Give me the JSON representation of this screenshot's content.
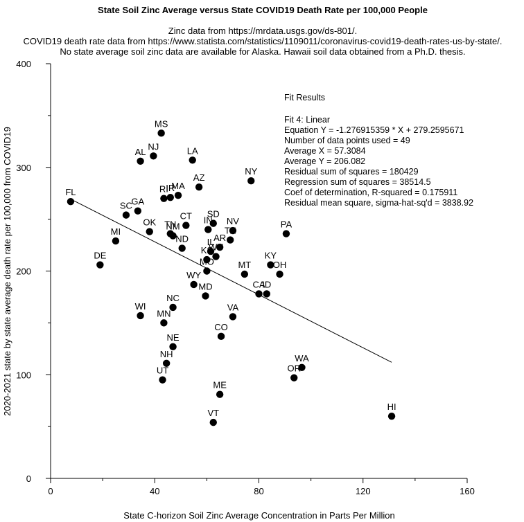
{
  "chart_data": {
    "type": "scatter",
    "title": "State Soil Zinc Average versus State COVID19 Death Rate per 100,000 People",
    "subtitle_lines": [
      "Zinc data from https://mrdata.usgs.gov/ds-801/.",
      "COVID19 death rate data from https://www.statista.com/statistics/1109011/coronavirus-covid19-death-rates-us-by-state/.",
      "No state average soil zinc data are available for Alaska.  Hawaii soil data obtained from a Ph.D. thesis."
    ],
    "xlabel": "State C-horizon Soil Zinc Average Concentration in Parts Per Million",
    "ylabel": "2020-2021 state by state average death rate per 100,000 from COVID19",
    "xlim": [
      0,
      160
    ],
    "ylim": [
      0,
      400
    ],
    "xticks": [
      0,
      40,
      80,
      120,
      160
    ],
    "yticks": [
      0,
      100,
      200,
      300,
      400
    ],
    "xtick_labels": [
      "0",
      "40",
      "80",
      "120",
      "160"
    ],
    "ytick_labels": [
      "0",
      "100",
      "200",
      "300",
      "400"
    ],
    "points": [
      {
        "label": "FL",
        "x": 7.7,
        "y": 267
      },
      {
        "label": "DE",
        "x": 19,
        "y": 206
      },
      {
        "label": "MI",
        "x": 25,
        "y": 229
      },
      {
        "label": "SC",
        "x": 29,
        "y": 254
      },
      {
        "label": "GA",
        "x": 33.5,
        "y": 258
      },
      {
        "label": "AL",
        "x": 34.5,
        "y": 306
      },
      {
        "label": "WI",
        "x": 34.5,
        "y": 157
      },
      {
        "label": "OK",
        "x": 38,
        "y": 238
      },
      {
        "label": "NJ",
        "x": 39.5,
        "y": 311
      },
      {
        "label": "MS",
        "x": 42.5,
        "y": 333
      },
      {
        "label": "RI",
        "x": 43.5,
        "y": 270
      },
      {
        "label": "MN",
        "x": 43.5,
        "y": 150
      },
      {
        "label": "UT",
        "x": 43,
        "y": 95
      },
      {
        "label": "NH",
        "x": 44.5,
        "y": 111
      },
      {
        "label": "IR",
        "x": 46,
        "y": 271
      },
      {
        "label": "TN",
        "x": 46,
        "y": 236
      },
      {
        "label": "NM",
        "x": 47,
        "y": 234
      },
      {
        "label": "NC",
        "x": 47,
        "y": 165
      },
      {
        "label": "NE",
        "x": 47,
        "y": 127
      },
      {
        "label": "MA",
        "x": 49,
        "y": 273
      },
      {
        "label": "ND",
        "x": 50.5,
        "y": 222
      },
      {
        "label": "CT",
        "x": 52,
        "y": 244
      },
      {
        "label": "LA",
        "x": 54.5,
        "y": 307
      },
      {
        "label": "WY",
        "x": 55,
        "y": 187
      },
      {
        "label": "AZ",
        "x": 57,
        "y": 281
      },
      {
        "label": "MD",
        "x": 59.5,
        "y": 176
      },
      {
        "label": "MO",
        "x": 60,
        "y": 200
      },
      {
        "label": "KS",
        "x": 60,
        "y": 211
      },
      {
        "label": "IN",
        "x": 60.5,
        "y": 240
      },
      {
        "label": "IL",
        "x": 61.5,
        "y": 219
      },
      {
        "label": "SD",
        "x": 62.5,
        "y": 246
      },
      {
        "label": "VT",
        "x": 62.5,
        "y": 54
      },
      {
        "label": "WV",
        "x": 63.5,
        "y": 214
      },
      {
        "label": "AR",
        "x": 65,
        "y": 223
      },
      {
        "label": "ME",
        "x": 65,
        "y": 81
      },
      {
        "label": "CO",
        "x": 65.5,
        "y": 137
      },
      {
        "label": "TX",
        "x": 69,
        "y": 230
      },
      {
        "label": "NV",
        "x": 70,
        "y": 239
      },
      {
        "label": "VA",
        "x": 70,
        "y": 156
      },
      {
        "label": "MT",
        "x": 74.5,
        "y": 197
      },
      {
        "label": "NY",
        "x": 77,
        "y": 287
      },
      {
        "label": "CA",
        "x": 80,
        "y": 178
      },
      {
        "label": "ID",
        "x": 83,
        "y": 178
      },
      {
        "label": "KY",
        "x": 84.5,
        "y": 206
      },
      {
        "label": "OH",
        "x": 88,
        "y": 197
      },
      {
        "label": "PA",
        "x": 90.5,
        "y": 236
      },
      {
        "label": "OR",
        "x": 93.5,
        "y": 97
      },
      {
        "label": "WA",
        "x": 96.5,
        "y": 107
      },
      {
        "label": "HI",
        "x": 131,
        "y": 60
      }
    ],
    "fit_line": {
      "slope": -1.276915359,
      "intercept": 279.2595671,
      "x_start": 7.7,
      "x_end": 131
    },
    "fit_results": {
      "heading": "Fit Results",
      "lines": [
        "Fit 4: Linear",
        "Equation Y = -1.276915359 * X + 279.2595671",
        "Number of data points used = 49",
        "Average X = 57.3084",
        "Average Y = 206.082",
        "Residual sum of squares = 180429",
        "Regression sum of squares = 38514.5",
        "Coef of determination, R-squared = 0.175911",
        "Residual mean square, sigma-hat-sq'd = 3838.92"
      ]
    }
  }
}
